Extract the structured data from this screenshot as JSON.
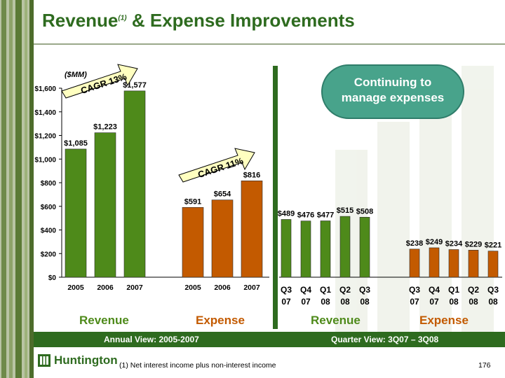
{
  "title": {
    "main": "Revenue",
    "superscript": "(1)",
    "rest": " & Expense Improvements"
  },
  "units_label": "($MM)",
  "callout": {
    "line1": "Continuing to",
    "line2": "manage expenses"
  },
  "section_labels": {
    "revenue_annual": "Revenue",
    "expense_annual": "Expense",
    "revenue_quarter": "Revenue",
    "expense_quarter": "Expense"
  },
  "footer": {
    "left": "Annual View:  2005-2007",
    "right": "Quarter View:  3Q07 – 3Q08"
  },
  "footnote": "(1)  Net interest income plus non-interest income",
  "page_number": "176",
  "logo_text": "Huntington",
  "colors": {
    "revenue": "#4e8a1a",
    "expense": "#c35a00",
    "brand_green": "#2e6b1f",
    "callout": "#48a38b",
    "cagr_fill": "#ffffc0"
  },
  "chart_data": [
    {
      "type": "bar",
      "name_group": "annual",
      "ylim": [
        0,
        1600
      ],
      "yticks": [
        "$0",
        "$200",
        "$400",
        "$600",
        "$800",
        "$1,000",
        "$1,200",
        "$1,400",
        "$1,600"
      ],
      "ytick_values": [
        0,
        200,
        400,
        600,
        800,
        1000,
        1200,
        1400,
        1600
      ],
      "revenue": {
        "categories": [
          "2005",
          "2006",
          "2007"
        ],
        "values": [
          1085,
          1223,
          1577
        ],
        "labels": [
          "$1,085",
          "$1,223",
          "$1,577"
        ]
      },
      "expense": {
        "categories": [
          "2005",
          "2006",
          "2007"
        ],
        "values": [
          591,
          654,
          816
        ],
        "labels": [
          "$591",
          "$654",
          "$816"
        ]
      },
      "annotations": [
        {
          "text": "CAGR 13%"
        },
        {
          "text": "CAGR 11%"
        }
      ]
    },
    {
      "type": "bar",
      "name_group": "quarterly",
      "ylim": [
        0,
        1600
      ],
      "revenue": {
        "categories": [
          [
            "Q3",
            "07"
          ],
          [
            "Q4",
            "07"
          ],
          [
            "Q1",
            "08"
          ],
          [
            "Q2",
            "08"
          ],
          [
            "Q3",
            "08"
          ]
        ],
        "values": [
          489,
          476,
          477,
          515,
          508
        ],
        "labels": [
          "$489",
          "$476",
          "$477",
          "$515",
          "$508"
        ]
      },
      "expense": {
        "categories": [
          [
            "Q3",
            "07"
          ],
          [
            "Q4",
            "07"
          ],
          [
            "Q1",
            "08"
          ],
          [
            "Q2",
            "08"
          ],
          [
            "Q3",
            "08"
          ]
        ],
        "values": [
          238,
          249,
          234,
          229,
          221
        ],
        "labels": [
          "$238",
          "$249",
          "$234",
          "$229",
          "$221"
        ]
      }
    }
  ]
}
